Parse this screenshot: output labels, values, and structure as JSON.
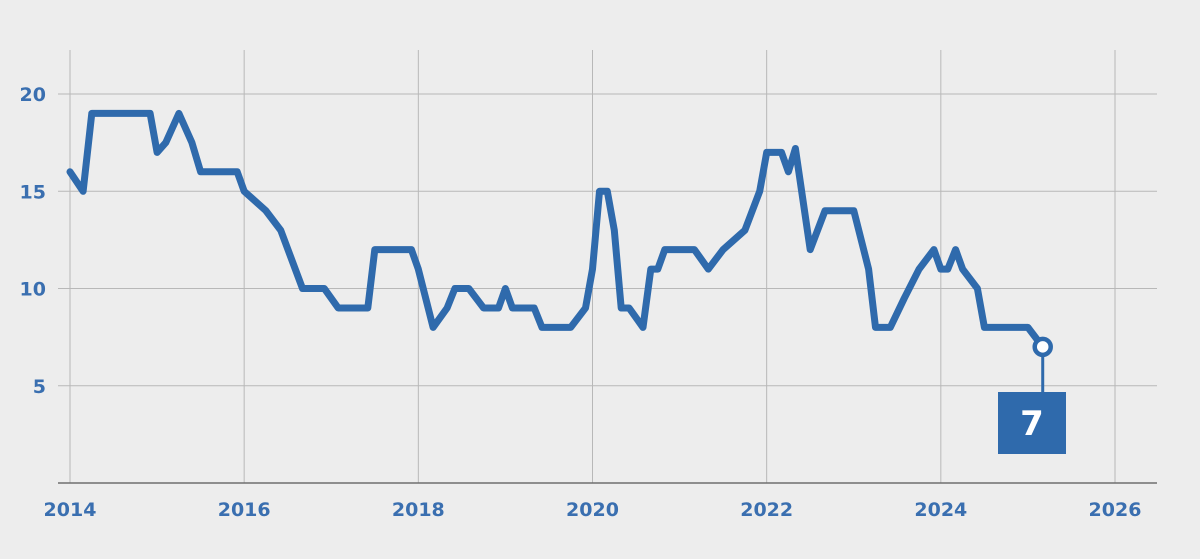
{
  "chart_data": {
    "type": "line",
    "title": "",
    "xlabel": "",
    "ylabel": "",
    "xlim": [
      2014,
      2026.3
    ],
    "ylim": [
      0,
      22
    ],
    "x_ticks": [
      2014,
      2016,
      2018,
      2020,
      2022,
      2024,
      2026
    ],
    "y_ticks": [
      5,
      10,
      15,
      20
    ],
    "grid": true,
    "legend": "none",
    "color": "#2f6aac",
    "series": [
      {
        "points": [
          [
            2014.0,
            16
          ],
          [
            2014.15,
            15
          ],
          [
            2014.25,
            19
          ],
          [
            2014.5,
            19
          ],
          [
            2014.75,
            19
          ],
          [
            2014.92,
            19
          ],
          [
            2015.0,
            17
          ],
          [
            2015.1,
            17.5
          ],
          [
            2015.25,
            19
          ],
          [
            2015.4,
            17.5
          ],
          [
            2015.5,
            16
          ],
          [
            2015.75,
            16
          ],
          [
            2015.92,
            16
          ],
          [
            2016.0,
            15
          ],
          [
            2016.25,
            14
          ],
          [
            2016.42,
            13
          ],
          [
            2016.67,
            10
          ],
          [
            2016.83,
            10
          ],
          [
            2016.92,
            10
          ],
          [
            2017.08,
            9
          ],
          [
            2017.25,
            9
          ],
          [
            2017.42,
            9
          ],
          [
            2017.5,
            12
          ],
          [
            2017.75,
            12
          ],
          [
            2017.92,
            12
          ],
          [
            2018.0,
            11
          ],
          [
            2018.17,
            8
          ],
          [
            2018.33,
            9
          ],
          [
            2018.42,
            10
          ],
          [
            2018.58,
            10
          ],
          [
            2018.75,
            9
          ],
          [
            2018.92,
            9
          ],
          [
            2019.0,
            10
          ],
          [
            2019.08,
            9
          ],
          [
            2019.25,
            9
          ],
          [
            2019.33,
            9
          ],
          [
            2019.42,
            8
          ],
          [
            2019.58,
            8
          ],
          [
            2019.75,
            8
          ],
          [
            2019.92,
            9
          ],
          [
            2020.0,
            11
          ],
          [
            2020.08,
            15
          ],
          [
            2020.17,
            15
          ],
          [
            2020.25,
            13
          ],
          [
            2020.33,
            9
          ],
          [
            2020.42,
            9
          ],
          [
            2020.58,
            8
          ],
          [
            2020.67,
            11
          ],
          [
            2020.75,
            11
          ],
          [
            2020.83,
            12
          ],
          [
            2021.0,
            12
          ],
          [
            2021.17,
            12
          ],
          [
            2021.33,
            11
          ],
          [
            2021.5,
            12
          ],
          [
            2021.75,
            13
          ],
          [
            2021.92,
            15
          ],
          [
            2022.0,
            17
          ],
          [
            2022.17,
            17
          ],
          [
            2022.25,
            16
          ],
          [
            2022.33,
            17.2
          ],
          [
            2022.5,
            12
          ],
          [
            2022.67,
            14
          ],
          [
            2022.83,
            14
          ],
          [
            2023.0,
            14
          ],
          [
            2023.17,
            11
          ],
          [
            2023.25,
            8
          ],
          [
            2023.42,
            8
          ],
          [
            2023.58,
            9.5
          ],
          [
            2023.75,
            11
          ],
          [
            2023.92,
            12
          ],
          [
            2024.0,
            11
          ],
          [
            2024.08,
            11
          ],
          [
            2024.17,
            12
          ],
          [
            2024.25,
            11
          ],
          [
            2024.42,
            10
          ],
          [
            2024.5,
            8
          ],
          [
            2024.75,
            8
          ],
          [
            2024.92,
            8
          ],
          [
            2025.0,
            8
          ],
          [
            2025.17,
            7
          ]
        ]
      }
    ],
    "annotation": {
      "x": 2025.17,
      "y": 7,
      "label": "7"
    }
  }
}
